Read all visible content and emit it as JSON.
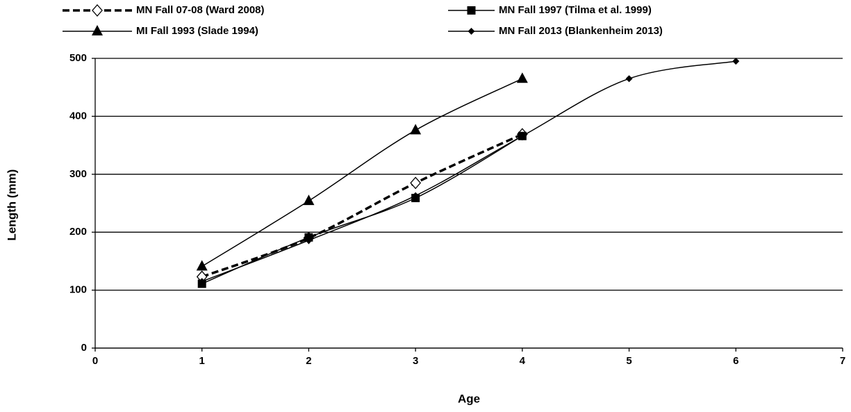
{
  "chart_data": {
    "type": "line",
    "x_label": "Age",
    "y_label": "Length (mm)",
    "xlim": [
      0,
      7
    ],
    "xticks": [
      0,
      1,
      2,
      3,
      4,
      5,
      6,
      7
    ],
    "ylim": [
      0,
      500
    ],
    "yticks": [
      0,
      100,
      200,
      300,
      400,
      500
    ],
    "grid": true,
    "smooth": true,
    "legend": "top",
    "series": [
      {
        "name": "MN Fall 07-08 (Ward 2008)",
        "color": "#000000",
        "dashed": true,
        "marker": "open-diamond",
        "x": [
          1,
          2,
          3,
          4
        ],
        "values": [
          123,
          190,
          285,
          369
        ]
      },
      {
        "name": "MN Fall 1997 (Tilma et al. 1999)",
        "color": "#000000",
        "dashed": false,
        "marker": "square",
        "x": [
          1,
          2,
          3,
          4
        ],
        "values": [
          111,
          191,
          259,
          366
        ]
      },
      {
        "name": "MI Fall 1993 (Slade 1994)",
        "color": "#000000",
        "dashed": false,
        "marker": "triangle",
        "x": [
          1,
          2,
          3,
          4
        ],
        "values": [
          141,
          254,
          376,
          465
        ]
      },
      {
        "name": "MN Fall 2013 (Blankenheim 2013)",
        "color": "#000000",
        "dashed": false,
        "marker": "small-diamond",
        "x": [
          1,
          2,
          3,
          4,
          5,
          6
        ],
        "values": [
          115,
          186,
          263,
          366,
          465,
          495
        ]
      }
    ]
  }
}
